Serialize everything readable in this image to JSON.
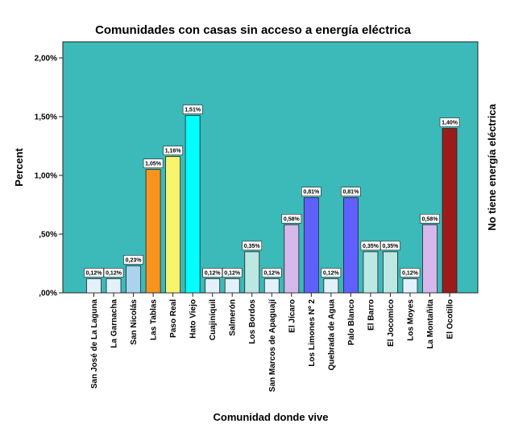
{
  "chart_data": {
    "type": "bar",
    "title": "Comunidades con casas sin acceso a energía eléctrica",
    "xlabel": "Comunidad donde vive",
    "ylabel": "Percent",
    "panel_label": "No tiene energía eléctrica",
    "ylim": [
      0,
      2.1
    ],
    "y_ticks": [
      {
        "value": 0,
        "label": ",00%"
      },
      {
        "value": 0.5,
        "label": ",50%"
      },
      {
        "value": 1.0,
        "label": "1,00%"
      },
      {
        "value": 1.5,
        "label": "1,50%"
      },
      {
        "value": 2.0,
        "label": "2,00%"
      }
    ],
    "grid": false,
    "background_color": "#3CB9B9",
    "categories": [
      "San José de La Laguna",
      "La Garnacha",
      "San Nicolás",
      "Las Tablas",
      "Paso Real",
      "Hato Viejo",
      "Cuajiniquil",
      "Salmerón",
      "Los Bordos",
      "San Marcos de Apaguají",
      "El Jícaro",
      "Los Limones Nº 2",
      "Quebrada de Agua",
      "Palo Blanco",
      "El Barro",
      "El Jocomico",
      "Los Moyes",
      "La Montañita",
      "El Ocotillo"
    ],
    "values": [
      0.12,
      0.12,
      0.23,
      1.05,
      1.16,
      1.51,
      0.12,
      0.12,
      0.35,
      0.12,
      0.58,
      0.81,
      0.12,
      0.81,
      0.35,
      0.35,
      0.12,
      0.58,
      1.4
    ],
    "labels": [
      "0,12%",
      "0,12%",
      "0,23%",
      "1,05%",
      "1,16%",
      "1,51%",
      "0,12%",
      "0,12%",
      "0,35%",
      "0,12%",
      "0,58%",
      "0,81%",
      "0,12%",
      "0,81%",
      "0,35%",
      "0,35%",
      "0,12%",
      "0,58%",
      "1,40%"
    ],
    "colors": [
      "#E3F1FA",
      "#E3F1FA",
      "#A9D3EE",
      "#F7941D",
      "#F8F46E",
      "#00FFFF",
      "#E3F1FA",
      "#E3F1FA",
      "#BCE8E4",
      "#E3F1FA",
      "#D7B8EC",
      "#6060FF",
      "#E3F1FA",
      "#6060FF",
      "#BCE8E4",
      "#BCE8E4",
      "#E3F1FA",
      "#D7B8EC",
      "#9B1B1B"
    ]
  }
}
